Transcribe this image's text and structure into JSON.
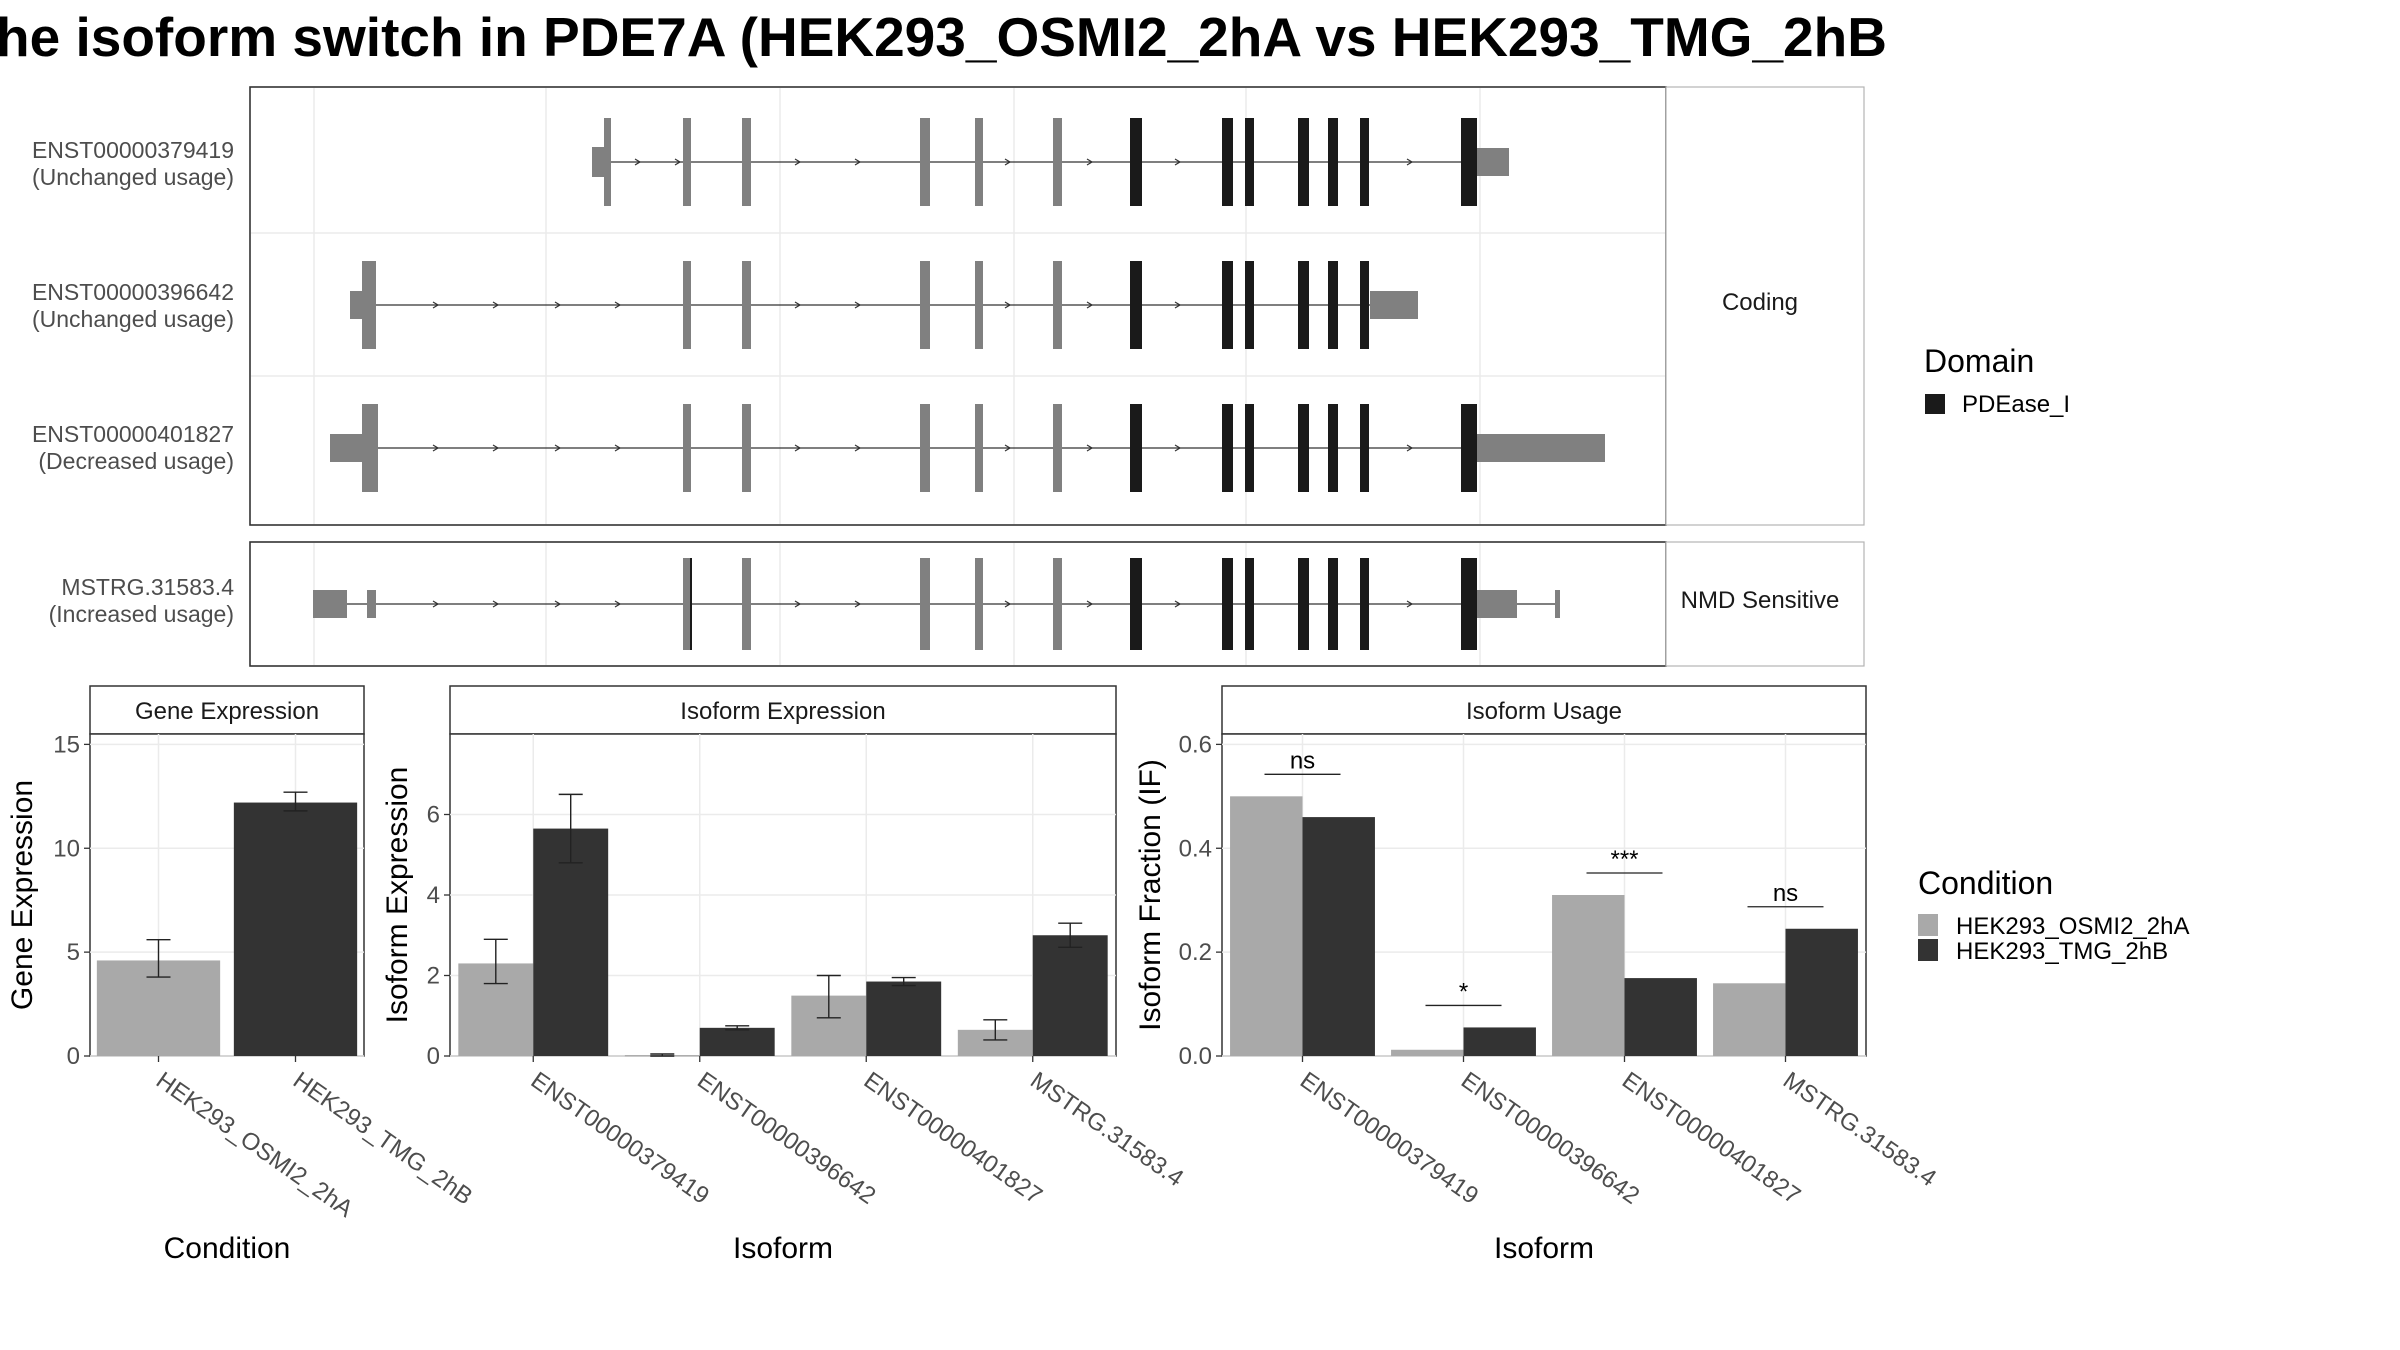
{
  "title": "he isoform switch in PDE7A (HEK293_OSMI2_2hA vs HEK293_TMG_2hB",
  "colors": {
    "exon_grey": "#808080",
    "domain": "#1a1a1a",
    "bar_osmi": "#a9a9a9",
    "bar_tmg": "#333333",
    "panel_border": "#333333",
    "strip_bg": "#ffffff",
    "grid": "#ebebeb"
  },
  "structure": {
    "strips": [
      "Coding",
      "NMD Sensitive"
    ],
    "transcripts": [
      {
        "id": "ENST00000379419",
        "label": "(Unchanged usage)",
        "group": "Coding"
      },
      {
        "id": "ENST00000396642",
        "label": "(Unchanged usage)",
        "group": "Coding"
      },
      {
        "id": "ENST00000401827",
        "label": "(Decreased usage)",
        "group": "Coding"
      },
      {
        "id": "MSTRG.31583.4",
        "label": "(Increased usage)",
        "group": "NMD Sensitive"
      }
    ]
  },
  "legend": {
    "domain_title": "Domain",
    "domain_items": [
      {
        "label": "PDEase_I",
        "color": "#1a1a1a"
      }
    ],
    "condition_title": "Condition",
    "condition_items": [
      {
        "label": "HEK293_OSMI2_2hA",
        "color": "#a9a9a9"
      },
      {
        "label": "HEK293_TMG_2hB",
        "color": "#333333"
      }
    ]
  },
  "chart_data": [
    {
      "type": "bar",
      "strip": "Gene Expression",
      "categories": [
        "HEK293_OSMI2_2hA",
        "HEK293_TMG_2hB"
      ],
      "values": [
        4.6,
        12.2
      ],
      "error_low": [
        3.8,
        11.8
      ],
      "error_high": [
        5.6,
        12.7
      ],
      "ylabel": "Gene Expression",
      "xlabel": "Condition",
      "ylim": [
        0,
        15.5
      ],
      "yticks": [
        0,
        5,
        10,
        15
      ]
    },
    {
      "type": "bar",
      "strip": "Isoform Expression",
      "categories": [
        "ENST00000379419",
        "ENST00000396642",
        "ENST00000401827",
        "MSTRG.31583.4"
      ],
      "series": [
        {
          "name": "HEK293_OSMI2_2hA",
          "values": [
            2.3,
            0.02,
            1.5,
            0.65
          ],
          "error_low": [
            1.8,
            0.0,
            0.95,
            0.4
          ],
          "error_high": [
            2.9,
            0.05,
            2.0,
            0.9
          ]
        },
        {
          "name": "HEK293_TMG_2hB",
          "values": [
            5.65,
            0.7,
            1.85,
            3.0
          ],
          "error_low": [
            4.8,
            0.65,
            1.75,
            2.7
          ],
          "error_high": [
            6.5,
            0.75,
            1.95,
            3.3
          ]
        }
      ],
      "ylabel": "Isoform Expression",
      "xlabel": "Isoform",
      "ylim": [
        0,
        8
      ],
      "yticks": [
        0,
        2,
        4,
        6
      ]
    },
    {
      "type": "bar",
      "strip": "Isoform Usage",
      "categories": [
        "ENST00000379419",
        "ENST00000396642",
        "ENST00000401827",
        "MSTRG.31583.4"
      ],
      "series": [
        {
          "name": "HEK293_OSMI2_2hA",
          "values": [
            0.5,
            0.012,
            0.31,
            0.14
          ]
        },
        {
          "name": "HEK293_TMG_2hB",
          "values": [
            0.46,
            0.055,
            0.15,
            0.245
          ]
        }
      ],
      "significance": [
        "ns",
        "*",
        "***",
        "ns"
      ],
      "ylabel": "Isoform Fraction (IF)",
      "xlabel": "Isoform",
      "ylim": [
        0,
        0.62
      ],
      "yticks": [
        "0.0",
        "0.2",
        "0.4",
        "0.6"
      ]
    }
  ]
}
